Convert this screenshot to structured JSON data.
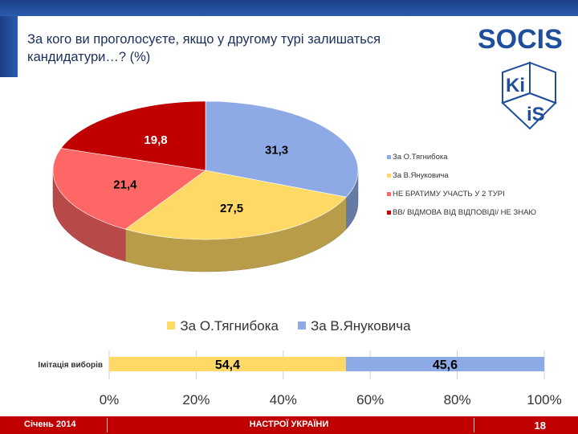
{
  "header": {
    "title": "За кого ви проголосуєте, якщо у другому турі залишаться кандидатури…? (%)",
    "logo_socis": "SOCIS",
    "logo_kiis_top": "Ki",
    "logo_kiis_bottom": "iS"
  },
  "chart_data": [
    {
      "type": "pie",
      "categories": [
        "За О.Тягнибока",
        "За В.Януковича",
        "НЕ БРАТИМУ УЧАСТЬ У 2 ТУРІ",
        "ВВ/ ВІДМОВА ВІД ВІДПОВІДІ/ НЕ ЗНАЮ"
      ],
      "values": [
        31.3,
        27.5,
        21.4,
        19.8
      ],
      "data_labels": [
        "31,3",
        "27,5",
        "21,4",
        "19,8"
      ],
      "colors": [
        "#8eaae6",
        "#ffd966",
        "#ff6666",
        "#c00000"
      ],
      "legend_position": "right",
      "title": ""
    },
    {
      "type": "bar",
      "orientation": "horizontal",
      "stacked": true,
      "categories": [
        "Імітація виборів"
      ],
      "series": [
        {
          "name": "За О.Тягнибока",
          "values": [
            54.4
          ],
          "label": "54,4",
          "color": "#ffd966"
        },
        {
          "name": "За В.Януковича",
          "values": [
            45.6
          ],
          "label": "45,6",
          "color": "#8eaae6"
        }
      ],
      "xlim": [
        0,
        100
      ],
      "ticks": [
        "0%",
        "20%",
        "40%",
        "60%",
        "80%",
        "100%"
      ],
      "legend_position": "top",
      "grid": true
    }
  ],
  "footer": {
    "date": "Січень 2014",
    "center": "НАСТРОЇ УКРАЇНИ",
    "page": "18"
  }
}
